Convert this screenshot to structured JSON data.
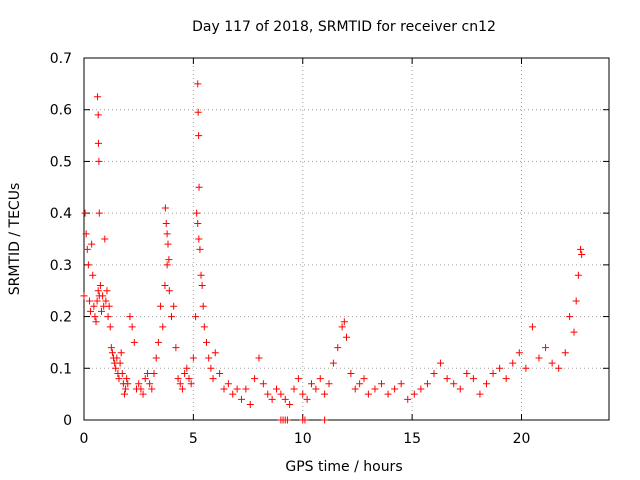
{
  "chart_data": {
    "type": "scatter",
    "title": "Day 117 of 2018, SRMTID for receiver cn12",
    "xlabel": "GPS time / hours",
    "ylabel": "SRMTID / TECUs",
    "xlim": [
      0,
      24
    ],
    "ylim": [
      0,
      0.7
    ],
    "xticks": [
      0,
      5,
      10,
      15,
      20
    ],
    "xtick_labels": [
      "0",
      "5",
      "10",
      "15",
      "20"
    ],
    "yticks": [
      0,
      0.1,
      0.2,
      0.3,
      0.4,
      0.5,
      0.6,
      0.7
    ],
    "ytick_labels": [
      "0",
      "0.1",
      "0.2",
      "0.3",
      "0.4",
      "0.5",
      "0.6",
      "0.7"
    ],
    "grid": true,
    "marker": "+",
    "series": [
      {
        "name": "SRMTID",
        "color": "#ff0000",
        "x": [
          0.0,
          0.05,
          0.1,
          0.15,
          0.2,
          0.25,
          0.3,
          0.35,
          0.4,
          0.45,
          0.5,
          0.55,
          0.6,
          0.65,
          0.7,
          0.75,
          0.8,
          0.85,
          0.9,
          0.95,
          1.0,
          1.05,
          1.1,
          1.15,
          1.2,
          1.25,
          1.3,
          1.35,
          1.4,
          1.45,
          1.5,
          1.55,
          1.6,
          1.65,
          1.7,
          1.75,
          1.8,
          1.85,
          1.9,
          1.95,
          0.62,
          0.65,
          0.66,
          0.68,
          0.7,
          2.0,
          2.1,
          2.2,
          2.3,
          2.4,
          2.5,
          2.6,
          2.7,
          2.8,
          2.9,
          3.0,
          3.1,
          3.2,
          3.3,
          3.4,
          3.5,
          3.6,
          3.7,
          3.8,
          3.9,
          4.0,
          4.1,
          4.2,
          4.3,
          4.4,
          4.5,
          4.6,
          4.7,
          4.8,
          4.9,
          3.72,
          3.76,
          3.8,
          3.84,
          3.88,
          5.0,
          5.1,
          5.15,
          5.2,
          5.25,
          5.3,
          5.35,
          5.4,
          5.45,
          5.5,
          5.6,
          5.7,
          5.8,
          5.9,
          6.0,
          6.2,
          6.4,
          6.6,
          6.8,
          7.0,
          5.2,
          5.22,
          5.24,
          5.26,
          7.2,
          7.4,
          7.6,
          7.8,
          8.0,
          8.2,
          8.4,
          8.6,
          8.8,
          9.0,
          9.2,
          9.4,
          9.6,
          9.8,
          10.0,
          10.2,
          10.4,
          10.6,
          10.8,
          11.0,
          11.2,
          11.4,
          11.6,
          11.8,
          11.9,
          12.0,
          12.2,
          12.4,
          12.6,
          12.8,
          13.0,
          13.3,
          13.6,
          13.9,
          14.2,
          14.5,
          14.8,
          15.1,
          15.4,
          15.7,
          9.0,
          9.1,
          9.2,
          9.3,
          10.0,
          10.1,
          11.0,
          16.0,
          16.3,
          16.6,
          16.9,
          17.2,
          17.5,
          17.8,
          18.1,
          18.4,
          18.7,
          19.0,
          19.3,
          19.6,
          19.9,
          20.2,
          20.5,
          20.8,
          21.1,
          21.4,
          21.7,
          22.0,
          22.2,
          22.4,
          22.5,
          22.6,
          22.7,
          22.75
        ],
        "y": [
          0.24,
          0.4,
          0.36,
          0.33,
          0.3,
          0.23,
          0.21,
          0.34,
          0.28,
          0.22,
          0.2,
          0.19,
          0.23,
          0.25,
          0.24,
          0.26,
          0.21,
          0.24,
          0.22,
          0.35,
          0.23,
          0.25,
          0.2,
          0.22,
          0.18,
          0.14,
          0.13,
          0.12,
          0.11,
          0.1,
          0.12,
          0.09,
          0.08,
          0.11,
          0.13,
          0.09,
          0.07,
          0.05,
          0.06,
          0.08,
          0.625,
          0.59,
          0.535,
          0.5,
          0.4,
          0.07,
          0.2,
          0.18,
          0.15,
          0.06,
          0.07,
          0.06,
          0.05,
          0.08,
          0.09,
          0.07,
          0.06,
          0.09,
          0.12,
          0.15,
          0.22,
          0.18,
          0.26,
          0.3,
          0.25,
          0.2,
          0.22,
          0.14,
          0.08,
          0.07,
          0.06,
          0.09,
          0.1,
          0.08,
          0.07,
          0.41,
          0.38,
          0.36,
          0.34,
          0.31,
          0.12,
          0.2,
          0.4,
          0.38,
          0.35,
          0.33,
          0.28,
          0.26,
          0.22,
          0.18,
          0.15,
          0.12,
          0.1,
          0.08,
          0.13,
          0.09,
          0.06,
          0.07,
          0.05,
          0.06,
          0.65,
          0.595,
          0.55,
          0.45,
          0.04,
          0.06,
          0.03,
          0.08,
          0.12,
          0.07,
          0.05,
          0.04,
          0.06,
          0.05,
          0.04,
          0.03,
          0.06,
          0.08,
          0.05,
          0.04,
          0.07,
          0.06,
          0.08,
          0.05,
          0.07,
          0.11,
          0.14,
          0.18,
          0.19,
          0.16,
          0.09,
          0.06,
          0.07,
          0.08,
          0.05,
          0.06,
          0.07,
          0.05,
          0.06,
          0.07,
          0.04,
          0.05,
          0.06,
          0.07,
          0.0,
          0.0,
          0.0,
          0.0,
          0.0,
          0.0,
          0.0,
          0.09,
          0.11,
          0.08,
          0.07,
          0.06,
          0.09,
          0.08,
          0.05,
          0.07,
          0.09,
          0.1,
          0.08,
          0.11,
          0.13,
          0.1,
          0.18,
          0.12,
          0.14,
          0.11,
          0.1,
          0.13,
          0.2,
          0.17,
          0.23,
          0.28,
          0.33,
          0.32
        ]
      }
    ]
  }
}
